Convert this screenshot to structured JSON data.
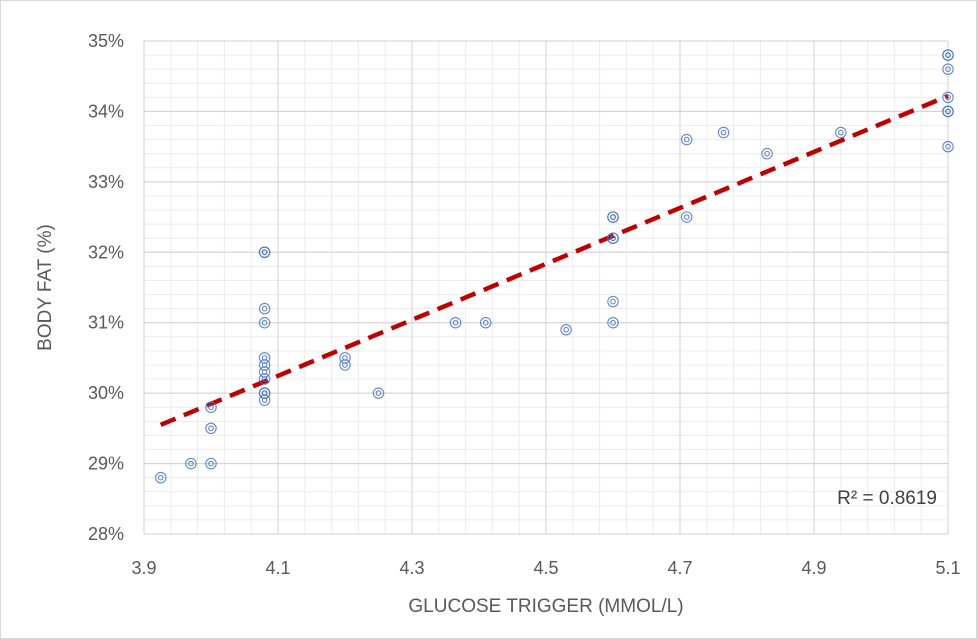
{
  "chart_data": {
    "type": "scatter",
    "title": "",
    "xlabel": "GLUCOSE TRIGGER (MMOL/L)",
    "ylabel": "BODY FAT (%)",
    "xlim": [
      3.9,
      5.1
    ],
    "ylim": [
      28,
      35
    ],
    "x_ticks": [
      3.9,
      4.1,
      4.3,
      4.5,
      4.7,
      4.9,
      5.1
    ],
    "x_tick_labels": [
      "3.9",
      "4.1",
      "4.3",
      "4.5",
      "4.7",
      "4.9",
      "5.1"
    ],
    "y_ticks": [
      28,
      29,
      30,
      31,
      32,
      33,
      34,
      35
    ],
    "y_tick_labels": [
      "28%",
      "29%",
      "30%",
      "31%",
      "32%",
      "33%",
      "34%",
      "35%"
    ],
    "grid": "major and minor",
    "marker_color": "#4472c4",
    "trendline": {
      "type": "linear",
      "x": [
        3.925,
        5.1
      ],
      "y": [
        29.55,
        34.22
      ],
      "color": "#c00000",
      "style": "dashed",
      "r_squared_label": "R² = 0.8619"
    },
    "points": [
      {
        "x": 3.925,
        "y": 28.8
      },
      {
        "x": 3.97,
        "y": 29.0
      },
      {
        "x": 4.0,
        "y": 29.0
      },
      {
        "x": 4.0,
        "y": 29.5
      },
      {
        "x": 4.0,
        "y": 29.8
      },
      {
        "x": 4.08,
        "y": 29.9
      },
      {
        "x": 4.08,
        "y": 30.0
      },
      {
        "x": 4.08,
        "y": 30.0
      },
      {
        "x": 4.08,
        "y": 30.2
      },
      {
        "x": 4.08,
        "y": 30.3
      },
      {
        "x": 4.08,
        "y": 30.4
      },
      {
        "x": 4.08,
        "y": 30.5
      },
      {
        "x": 4.08,
        "y": 31.0
      },
      {
        "x": 4.08,
        "y": 31.2
      },
      {
        "x": 4.08,
        "y": 32.0
      },
      {
        "x": 4.08,
        "y": 32.0
      },
      {
        "x": 4.2,
        "y": 30.4
      },
      {
        "x": 4.2,
        "y": 30.5
      },
      {
        "x": 4.25,
        "y": 30.0
      },
      {
        "x": 4.365,
        "y": 31.0
      },
      {
        "x": 4.41,
        "y": 31.0
      },
      {
        "x": 4.53,
        "y": 30.9
      },
      {
        "x": 4.6,
        "y": 31.0
      },
      {
        "x": 4.6,
        "y": 31.3
      },
      {
        "x": 4.6,
        "y": 32.2
      },
      {
        "x": 4.6,
        "y": 32.2
      },
      {
        "x": 4.6,
        "y": 32.5
      },
      {
        "x": 4.6,
        "y": 32.5
      },
      {
        "x": 4.71,
        "y": 32.5
      },
      {
        "x": 4.71,
        "y": 33.6
      },
      {
        "x": 4.765,
        "y": 33.7
      },
      {
        "x": 4.83,
        "y": 33.4
      },
      {
        "x": 4.94,
        "y": 33.7
      },
      {
        "x": 5.1,
        "y": 33.5
      },
      {
        "x": 5.1,
        "y": 34.0
      },
      {
        "x": 5.1,
        "y": 34.0
      },
      {
        "x": 5.1,
        "y": 34.2
      },
      {
        "x": 5.1,
        "y": 34.6
      },
      {
        "x": 5.1,
        "y": 34.8
      },
      {
        "x": 5.1,
        "y": 34.8
      }
    ]
  }
}
